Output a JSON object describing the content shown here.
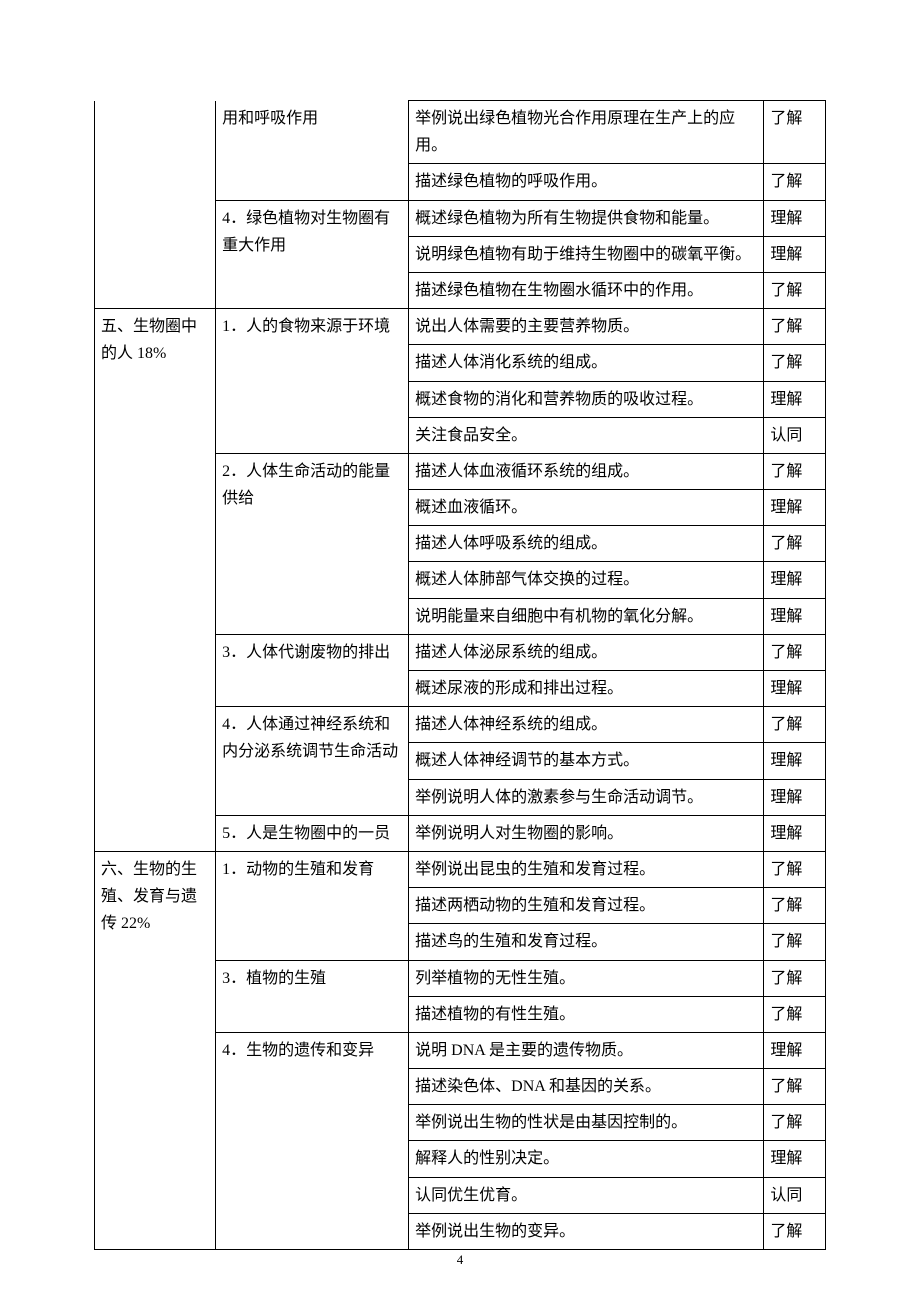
{
  "page_number": "4",
  "rows": [
    {
      "c1": "",
      "c2": "用和呼吸作用",
      "c3": "举例说出绿色植物光合作用原理在生产上的应用。",
      "c4": "了解",
      "notop1": true,
      "notop2": true
    },
    {
      "c1": "",
      "c2": "",
      "c3": "描述绿色植物的呼吸作用。",
      "c4": "了解"
    },
    {
      "c1": "",
      "c2": "4．绿色植物对生物圈有重大作用",
      "c3": "概述绿色植物为所有生物提供食物和能量。",
      "c4": "理解"
    },
    {
      "c1": "",
      "c2": "",
      "c3": "说明绿色植物有助于维持生物圈中的碳氧平衡。",
      "c4": "理解"
    },
    {
      "c1": "",
      "c2": "",
      "c3": "描述绿色植物在生物圈水循环中的作用。",
      "c4": "了解"
    },
    {
      "c1": "五、生物圈中的人 18%",
      "c2": "1．人的食物来源于环境",
      "c3": "说出人体需要的主要营养物质。",
      "c4": "了解"
    },
    {
      "c1": "",
      "c2": "",
      "c3": "描述人体消化系统的组成。",
      "c4": "了解"
    },
    {
      "c1": "",
      "c2": "",
      "c3": "概述食物的消化和营养物质的吸收过程。",
      "c4": "理解"
    },
    {
      "c1": "",
      "c2": "",
      "c3": "关注食品安全。",
      "c4": "认同"
    },
    {
      "c1": "",
      "c2": "2．人体生命活动的能量供给",
      "c3": "描述人体血液循环系统的组成。",
      "c4": "了解"
    },
    {
      "c1": "",
      "c2": "",
      "c3": "概述血液循环。",
      "c4": "理解"
    },
    {
      "c1": "",
      "c2": "",
      "c3": "描述人体呼吸系统的组成。",
      "c4": "了解"
    },
    {
      "c1": "",
      "c2": "",
      "c3": "概述人体肺部气体交换的过程。",
      "c4": "理解"
    },
    {
      "c1": "",
      "c2": "",
      "c3": "说明能量来自细胞中有机物的氧化分解。",
      "c4": "理解"
    },
    {
      "c1": "",
      "c2": "3．人体代谢废物的排出",
      "c3": "描述人体泌尿系统的组成。",
      "c4": "了解"
    },
    {
      "c1": "",
      "c2": "",
      "c3": "概述尿液的形成和排出过程。",
      "c4": "理解"
    },
    {
      "c1": "",
      "c2": "4．人体通过神经系统和内分泌系统调节生命活动",
      "c3": "描述人体神经系统的组成。",
      "c4": "了解"
    },
    {
      "c1": "",
      "c2": "",
      "c3": "概述人体神经调节的基本方式。",
      "c4": "理解"
    },
    {
      "c1": "",
      "c2": "",
      "c3": "举例说明人体的激素参与生命活动调节。",
      "c4": "理解"
    },
    {
      "c1": "",
      "c2": "5．人是生物圈中的一员",
      "c3": "举例说明人对生物圈的影响。",
      "c4": "理解"
    },
    {
      "c1": "六、生物的生殖、发育与遗传 22%",
      "c2": "1．动物的生殖和发育",
      "c3": "举例说出昆虫的生殖和发育过程。",
      "c4": "了解"
    },
    {
      "c1": "",
      "c2": "",
      "c3": "描述两栖动物的生殖和发育过程。",
      "c4": "了解"
    },
    {
      "c1": "",
      "c2": "",
      "c3": "描述鸟的生殖和发育过程。",
      "c4": "了解"
    },
    {
      "c1": "",
      "c2": "3．植物的生殖",
      "c3": "列举植物的无性生殖。",
      "c4": "了解"
    },
    {
      "c1": "",
      "c2": "",
      "c3": "描述植物的有性生殖。",
      "c4": "了解"
    },
    {
      "c1": "",
      "c2": "4．生物的遗传和变异",
      "c3": "说明 DNA 是主要的遗传物质。",
      "c4": "理解"
    },
    {
      "c1": "",
      "c2": "",
      "c3": "描述染色体、DNA 和基因的关系。",
      "c4": "了解"
    },
    {
      "c1": "",
      "c2": "",
      "c3": "举例说出生物的性状是由基因控制的。",
      "c4": "了解"
    },
    {
      "c1": "",
      "c2": "",
      "c3": "解释人的性别决定。",
      "c4": "理解"
    },
    {
      "c1": "",
      "c2": "",
      "c3": "认同优生优育。",
      "c4": "认同"
    },
    {
      "c1": "",
      "c2": "",
      "c3": "举例说出生物的变异。",
      "c4": "了解"
    }
  ],
  "merges": {
    "col1": [
      {
        "start": 0,
        "span": 5
      },
      {
        "start": 5,
        "span": 15
      },
      {
        "start": 20,
        "span": 11
      }
    ],
    "col2": [
      {
        "start": 0,
        "span": 2
      },
      {
        "start": 2,
        "span": 3
      },
      {
        "start": 5,
        "span": 4
      },
      {
        "start": 9,
        "span": 5
      },
      {
        "start": 14,
        "span": 2
      },
      {
        "start": 16,
        "span": 3
      },
      {
        "start": 19,
        "span": 1
      },
      {
        "start": 20,
        "span": 3
      },
      {
        "start": 23,
        "span": 2
      },
      {
        "start": 25,
        "span": 6
      }
    ]
  }
}
